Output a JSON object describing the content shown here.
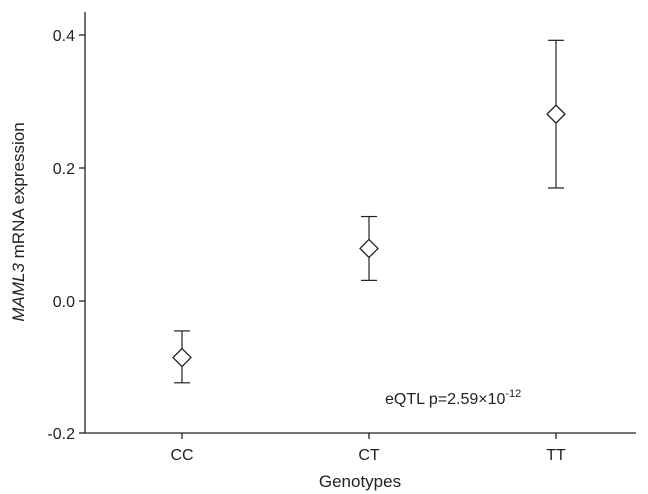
{
  "chart_data": {
    "type": "scatter",
    "title": "",
    "xlabel": "Genotypes",
    "ylabel_italic": "MAML3",
    "ylabel_rest": " mRNA expression",
    "categories": [
      "CC",
      "CT",
      "TT"
    ],
    "series": [
      {
        "marker": "diamond",
        "values": [
          -0.085,
          0.079,
          0.281
        ],
        "error_low": [
          -0.123,
          0.031,
          0.17
        ],
        "error_high": [
          -0.045,
          0.127,
          0.392
        ]
      }
    ],
    "ylim": [
      -0.2,
      0.42
    ],
    "yticks": [
      -0.2,
      0.0,
      0.2,
      0.4
    ],
    "ytick_labels": [
      "-0.2",
      "0.0",
      "0.2",
      "0.4"
    ],
    "grid": false,
    "annotation": {
      "base": "eQTL p=2.59×10",
      "exponent": "-12"
    }
  }
}
